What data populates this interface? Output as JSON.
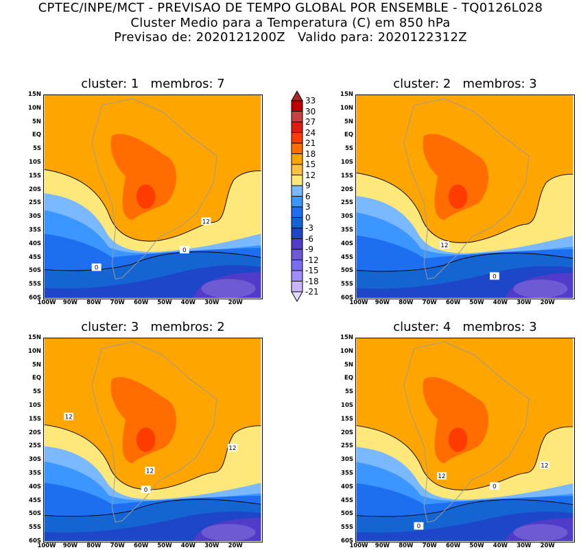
{
  "header": {
    "line1": "CPTEC/INPE/MCT - PREVISAO DE TEMPO GLOBAL POR ENSEMBLE - TQ0126L028",
    "line2": "Cluster Medio para a Temperatura (C) em 850 hPa",
    "line3": "Previsao de: 2020121200Z   Valido para: 2020122312Z"
  },
  "lat_ticks": [
    "15N",
    "10N",
    "5N",
    "EQ",
    "5S",
    "10S",
    "15S",
    "20S",
    "25S",
    "30S",
    "35S",
    "40S",
    "45S",
    "50S",
    "55S",
    "60S"
  ],
  "lon_ticks": [
    "100W",
    "90W",
    "80W",
    "70W",
    "60W",
    "50W",
    "40W",
    "30W",
    "20W"
  ],
  "panels": [
    {
      "title": "cluster: 1   membros: 7",
      "contour_labels": [
        "12",
        "0",
        "0"
      ]
    },
    {
      "title": "cluster: 2   membros: 3",
      "contour_labels": [
        "12",
        "0"
      ]
    },
    {
      "title": "cluster: 3   membros: 2",
      "contour_labels": [
        "12",
        "12",
        "12",
        "0"
      ]
    },
    {
      "title": "cluster: 4   membros: 3",
      "contour_labels": [
        "12",
        "12",
        "0",
        "0"
      ]
    }
  ],
  "colorbar": {
    "labels": [
      "33",
      "30",
      "27",
      "24",
      "21",
      "18",
      "15",
      "12",
      "9",
      "6",
      "3",
      "0",
      "-3",
      "-6",
      "-9",
      "-12",
      "-15",
      "-18",
      "-21"
    ],
    "colors": [
      "#a82828",
      "#c00000",
      "#c84040",
      "#e01c10",
      "#ff3c00",
      "#ff6c00",
      "#ffa500",
      "#ffc040",
      "#ffe87a",
      "#7ab8ff",
      "#3c96ff",
      "#1e6ef0",
      "#1464d2",
      "#1e46c8",
      "#503cc8",
      "#6e5ad2",
      "#7a6eee",
      "#a08cff",
      "#c8b4ff",
      "#e0dcff"
    ]
  }
}
